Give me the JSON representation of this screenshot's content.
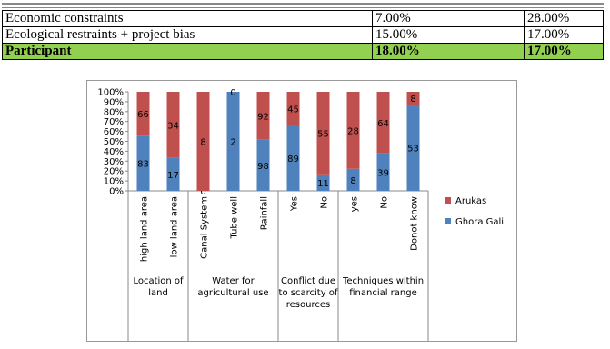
{
  "table": {
    "rows": [
      [
        "Economic constraints",
        "7.00%",
        "28.00%"
      ],
      [
        "Ecological restraints + project bias",
        "15.00%",
        "17.00%"
      ],
      [
        "Participant",
        "18.00%",
        "17.00%"
      ]
    ]
  },
  "chart_data": {
    "type": "stacked_percent_bar",
    "categories": [
      "high land area",
      "low land area",
      "Canal System",
      "Tube well",
      "Rainfall",
      "Yes",
      "No",
      "yes",
      "No",
      "Donot know"
    ],
    "groups": [
      "Location of land",
      "Water for agricultural use",
      "Conflict due to scarcity of resources",
      "Techniques within financial range"
    ],
    "series": [
      {
        "name": "Ghora Gali",
        "color": "#4f81bd",
        "values": [
          83,
          17,
          0,
          2,
          98,
          89,
          11,
          8,
          39,
          53
        ]
      },
      {
        "name": "Arukas",
        "color": "#c0504d",
        "values": [
          66,
          34,
          8,
          0,
          92,
          45,
          55,
          28,
          64,
          8
        ]
      }
    ],
    "ylim": [
      0,
      100
    ],
    "yticks": [
      {
        "value": 0,
        "label": "0%"
      },
      {
        "value": 10,
        "label": "10%"
      },
      {
        "value": 20,
        "label": "20%"
      },
      {
        "value": 30,
        "label": "30%"
      },
      {
        "value": 40,
        "label": "40%"
      },
      {
        "value": 50,
        "label": "50%"
      },
      {
        "value": 60,
        "label": "60%"
      },
      {
        "value": 70,
        "label": "70%"
      },
      {
        "value": 80,
        "label": "80%"
      },
      {
        "value": 90,
        "label": "90%"
      },
      {
        "value": 100,
        "label": "100%"
      }
    ]
  }
}
